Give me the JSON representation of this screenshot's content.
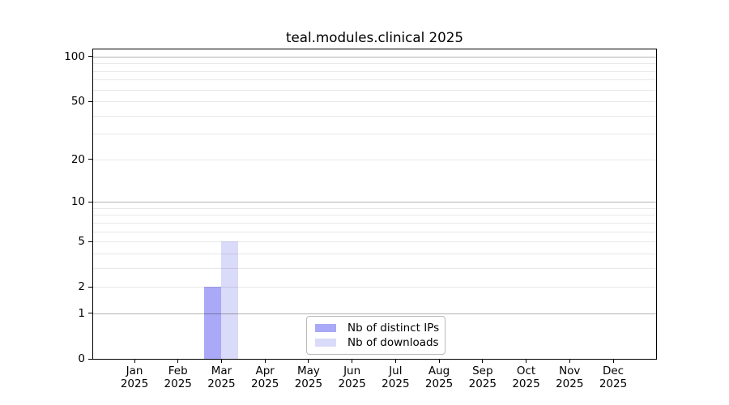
{
  "chart_data": {
    "type": "bar",
    "title": "teal.modules.clinical 2025",
    "categories": [
      "Jan",
      "Feb",
      "Mar",
      "Apr",
      "May",
      "Jun",
      "Jul",
      "Aug",
      "Sep",
      "Oct",
      "Nov",
      "Dec"
    ],
    "category_year": "2025",
    "series": [
      {
        "name": "Nb of distinct IPs",
        "color": "#a9a9f7",
        "values": [
          0,
          0,
          2,
          0,
          0,
          0,
          0,
          0,
          0,
          0,
          0,
          0
        ]
      },
      {
        "name": "Nb of downloads",
        "color": "#dadaf9",
        "values": [
          0,
          0,
          5,
          0,
          0,
          0,
          0,
          0,
          0,
          0,
          0,
          0
        ]
      }
    ],
    "xlabel": "",
    "ylabel": "",
    "y_scale": "log10(value+1)",
    "yticks": [
      0,
      1,
      2,
      5,
      10,
      20,
      50,
      100
    ],
    "ylim": [
      0,
      113
    ],
    "grid": "horizontal",
    "major_grid_values": [
      1,
      10,
      100
    ],
    "minor_grid_values": [
      2,
      3,
      4,
      5,
      6,
      7,
      8,
      9,
      20,
      30,
      40,
      50,
      60,
      70,
      80,
      90
    ],
    "legend_position": "lower center"
  },
  "colors": {
    "axis": "#000000",
    "major_grid": "rgba(0,0,0,0.30)",
    "minor_grid": "rgba(0,0,0,0.09)",
    "background": "#ffffff",
    "legend_border": "#b9b9b9"
  }
}
